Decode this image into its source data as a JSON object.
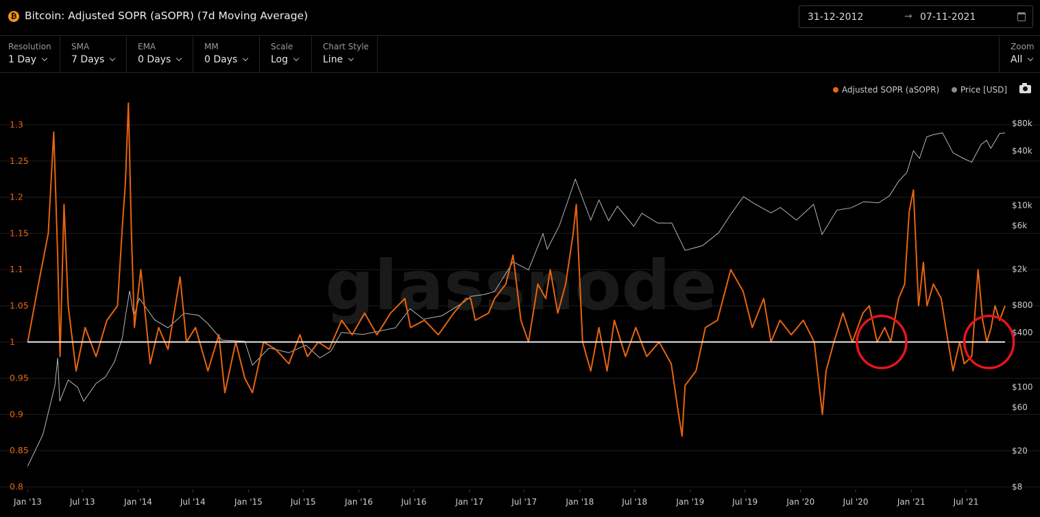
{
  "header": {
    "coin_icon": "bitcoin-icon",
    "coin_glyph": "₿",
    "title": "Bitcoin: Adjusted SOPR (aSOPR) (7d Moving Average)",
    "date_from": "31-12-2012",
    "date_arrow": "→",
    "date_to": "07-11-2021",
    "calendar_icon": "calendar-icon"
  },
  "toolbar": {
    "resolution": {
      "label": "Resolution",
      "value": "1 Day"
    },
    "sma": {
      "label": "SMA",
      "value": "7 Days"
    },
    "ema": {
      "label": "EMA",
      "value": "0 Days"
    },
    "mm": {
      "label": "MM",
      "value": "0 Days"
    },
    "scale": {
      "label": "Scale",
      "value": "Log"
    },
    "chart_style": {
      "label": "Chart Style",
      "value": "Line"
    },
    "zoom": {
      "label": "Zoom",
      "value": "All"
    }
  },
  "legend": {
    "asopr": "Adjusted SOPR (aSOPR)",
    "price": "Price [USD]",
    "camera_icon": "camera-icon"
  },
  "watermark": "glassnode",
  "colors": {
    "asopr": "#e8650f",
    "price": "#b8b8b8",
    "baseline": "#e6e6e6",
    "annotation": "#e8141e",
    "left_axis": "#e8650f",
    "right_axis": "#cccccc",
    "grid": "#1e1e1e"
  },
  "chart_data": {
    "type": "line",
    "title": "Bitcoin: Adjusted SOPR (aSOPR) (7d Moving Average)",
    "x_tick_labels": [
      "Jan '13",
      "Jul '13",
      "Jan '14",
      "Jul '14",
      "Jan '15",
      "Jul '15",
      "Jan '16",
      "Jul '16",
      "Jan '17",
      "Jul '17",
      "Jan '18",
      "Jul '18",
      "Jan '19",
      "Jul '19",
      "Jan '20",
      "Jul '20",
      "Jan '21",
      "Jul '21"
    ],
    "x_tick_dates": [
      "2013-01-01",
      "2013-07-01",
      "2014-01-01",
      "2014-07-01",
      "2015-01-01",
      "2015-07-01",
      "2016-01-01",
      "2016-07-01",
      "2017-01-01",
      "2017-07-01",
      "2018-01-01",
      "2018-07-01",
      "2019-01-01",
      "2019-07-01",
      "2020-01-01",
      "2020-07-01",
      "2021-01-01",
      "2021-07-01"
    ],
    "x_range": [
      "2012-12-31",
      "2021-11-07"
    ],
    "y_left": {
      "label": "",
      "ylim": [
        0.8,
        1.3
      ],
      "ticks": [
        0.8,
        0.85,
        0.9,
        0.95,
        1,
        1.05,
        1.1,
        1.15,
        1.2,
        1.25,
        1.3
      ]
    },
    "y_right": {
      "label": "",
      "scale": "log",
      "ylim": [
        8,
        80000
      ],
      "ticks": [
        8,
        20,
        60,
        100,
        400,
        800,
        2000,
        6000,
        10000,
        40000,
        80000
      ],
      "tick_labels": [
        "$8",
        "$20",
        "$60",
        "$100",
        "$400",
        "$800",
        "$2k",
        "$6k",
        "$10k",
        "$40k",
        "$80k"
      ]
    },
    "baseline": 1,
    "grid": true,
    "legend_position": "top-right",
    "series": [
      {
        "name": "Adjusted SOPR (aSOPR)",
        "axis": "left",
        "x": [
          "2013-01-01",
          "2013-02-10",
          "2013-03-10",
          "2013-03-28",
          "2013-04-10",
          "2013-04-18",
          "2013-05-01",
          "2013-05-15",
          "2013-06-10",
          "2013-07-10",
          "2013-08-15",
          "2013-09-20",
          "2013-10-25",
          "2013-11-10",
          "2013-11-20",
          "2013-11-30",
          "2013-12-10",
          "2013-12-20",
          "2014-01-10",
          "2014-02-10",
          "2014-03-10",
          "2014-04-10",
          "2014-05-20",
          "2014-06-10",
          "2014-07-10",
          "2014-08-20",
          "2014-09-25",
          "2014-10-15",
          "2014-11-20",
          "2014-12-20",
          "2015-01-14",
          "2015-02-20",
          "2015-04-01",
          "2015-05-15",
          "2015-06-20",
          "2015-07-15",
          "2015-08-20",
          "2015-09-25",
          "2015-11-05",
          "2015-12-10",
          "2016-01-20",
          "2016-03-01",
          "2016-04-15",
          "2016-06-01",
          "2016-06-20",
          "2016-08-05",
          "2016-09-20",
          "2016-11-10",
          "2016-12-20",
          "2017-01-05",
          "2017-01-20",
          "2017-03-05",
          "2017-03-25",
          "2017-05-01",
          "2017-05-25",
          "2017-06-20",
          "2017-07-15",
          "2017-08-15",
          "2017-09-10",
          "2017-09-25",
          "2017-10-20",
          "2017-11-15",
          "2017-12-10",
          "2017-12-20",
          "2018-01-10",
          "2018-02-06",
          "2018-03-05",
          "2018-04-01",
          "2018-04-25",
          "2018-06-01",
          "2018-07-05",
          "2018-08-10",
          "2018-09-20",
          "2018-10-30",
          "2018-11-20",
          "2018-12-05",
          "2018-12-15",
          "2019-01-20",
          "2019-02-20",
          "2019-04-01",
          "2019-05-15",
          "2019-06-25",
          "2019-07-25",
          "2019-09-01",
          "2019-09-25",
          "2019-10-25",
          "2019-12-01",
          "2020-01-10",
          "2020-02-15",
          "2020-03-13",
          "2020-03-25",
          "2020-04-20",
          "2020-05-20",
          "2020-06-20",
          "2020-07-25",
          "2020-08-15",
          "2020-09-10",
          "2020-10-05",
          "2020-10-25",
          "2020-11-20",
          "2020-12-10",
          "2020-12-25",
          "2021-01-08",
          "2021-01-25",
          "2021-02-10",
          "2021-02-22",
          "2021-03-15",
          "2021-04-10",
          "2021-04-25",
          "2021-05-19",
          "2021-06-10",
          "2021-06-25",
          "2021-07-20",
          "2021-08-10",
          "2021-08-25",
          "2021-09-08",
          "2021-09-22",
          "2021-10-05",
          "2021-10-20",
          "2021-11-07"
        ],
        "values": [
          1.0,
          1.09,
          1.15,
          1.29,
          1.12,
          0.98,
          1.19,
          1.05,
          0.96,
          1.02,
          0.98,
          1.03,
          1.05,
          1.16,
          1.22,
          1.33,
          1.15,
          1.02,
          1.1,
          0.97,
          1.02,
          0.99,
          1.09,
          1.0,
          1.02,
          0.96,
          1.01,
          0.93,
          1.0,
          0.95,
          0.93,
          1.0,
          0.99,
          0.97,
          1.01,
          0.98,
          1.0,
          0.99,
          1.03,
          1.01,
          1.04,
          1.01,
          1.04,
          1.06,
          1.02,
          1.03,
          1.01,
          1.04,
          1.06,
          1.06,
          1.03,
          1.04,
          1.06,
          1.08,
          1.12,
          1.03,
          1.0,
          1.08,
          1.06,
          1.1,
          1.04,
          1.08,
          1.15,
          1.19,
          1.0,
          0.96,
          1.02,
          0.96,
          1.03,
          0.98,
          1.02,
          0.98,
          1.0,
          0.97,
          0.91,
          0.87,
          0.94,
          0.96,
          1.02,
          1.03,
          1.1,
          1.07,
          1.02,
          1.06,
          1.0,
          1.03,
          1.01,
          1.03,
          1.0,
          0.9,
          0.96,
          1.0,
          1.04,
          1.0,
          1.04,
          1.05,
          1.0,
          1.02,
          1.0,
          1.06,
          1.08,
          1.18,
          1.21,
          1.05,
          1.11,
          1.05,
          1.08,
          1.06,
          1.02,
          0.96,
          1.0,
          0.97,
          0.98,
          1.1,
          1.03,
          1.0,
          1.02,
          1.05,
          1.03,
          1.05
        ]
      },
      {
        "name": "Price [USD]",
        "axis": "right",
        "x": [
          "2013-01-01",
          "2013-02-20",
          "2013-04-01",
          "2013-04-10",
          "2013-04-17",
          "2013-05-15",
          "2013-06-15",
          "2013-07-05",
          "2013-08-15",
          "2013-09-15",
          "2013-10-15",
          "2013-11-10",
          "2013-11-20",
          "2013-12-04",
          "2013-12-18",
          "2014-01-05",
          "2014-02-25",
          "2014-04-10",
          "2014-06-02",
          "2014-07-20",
          "2014-08-20",
          "2014-10-05",
          "2014-12-20",
          "2015-01-14",
          "2015-03-10",
          "2015-05-15",
          "2015-07-10",
          "2015-08-25",
          "2015-10-01",
          "2015-11-04",
          "2016-01-15",
          "2016-05-01",
          "2016-06-18",
          "2016-08-02",
          "2016-10-01",
          "2016-12-20",
          "2017-01-05",
          "2017-02-20",
          "2017-03-25",
          "2017-05-25",
          "2017-07-15",
          "2017-09-01",
          "2017-09-15",
          "2017-10-25",
          "2017-12-17",
          "2018-02-06",
          "2018-03-05",
          "2018-04-06",
          "2018-05-05",
          "2018-06-28",
          "2018-07-25",
          "2018-09-15",
          "2018-11-01",
          "2018-12-15",
          "2019-02-10",
          "2019-04-05",
          "2019-05-15",
          "2019-06-26",
          "2019-08-01",
          "2019-09-25",
          "2019-10-26",
          "2019-12-18",
          "2020-02-13",
          "2020-03-12",
          "2020-04-30",
          "2020-06-15",
          "2020-07-28",
          "2020-09-15",
          "2020-10-21",
          "2020-11-20",
          "2020-12-17",
          "2021-01-08",
          "2021-01-28",
          "2021-02-21",
          "2021-03-13",
          "2021-04-14",
          "2021-05-19",
          "2021-06-22",
          "2021-07-20",
          "2021-08-20",
          "2021-09-07",
          "2021-09-21",
          "2021-10-20",
          "2021-11-07"
        ],
        "values": [
          13.5,
          30,
          104,
          210,
          70,
          120,
          100,
          70,
          110,
          130,
          190,
          350,
          600,
          1150,
          600,
          950,
          550,
          450,
          650,
          620,
          500,
          330,
          320,
          175,
          270,
          240,
          290,
          210,
          250,
          400,
          380,
          450,
          730,
          560,
          610,
          890,
          1000,
          1050,
          1130,
          2400,
          1950,
          4900,
          3300,
          6000,
          19500,
          6900,
          11500,
          6800,
          9800,
          5900,
          8200,
          6400,
          6400,
          3200,
          3600,
          5000,
          8000,
          12500,
          10500,
          8300,
          9500,
          6900,
          10300,
          4800,
          8900,
          9400,
          11000,
          10700,
          12800,
          18500,
          23000,
          40000,
          33000,
          57000,
          60000,
          63000,
          38000,
          33000,
          30000,
          47000,
          52000,
          42500,
          62000,
          63000
        ]
      }
    ],
    "annotations": [
      {
        "shape": "circle",
        "center_date": "2020-09-25",
        "center_value": 1.0,
        "color": "red"
      },
      {
        "shape": "circle",
        "center_date": "2021-09-15",
        "center_value": 1.0,
        "color": "red"
      }
    ]
  }
}
